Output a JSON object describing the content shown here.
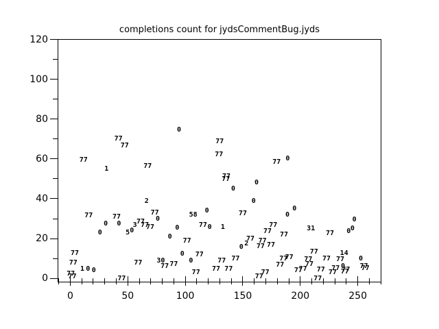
{
  "window": {
    "background": "#ffffff",
    "text_color": "#000000",
    "axis_color": "#000000"
  },
  "chart_data": {
    "type": "scatter",
    "title": "completions count for jydsCommentBug.jyds",
    "xlabel": "",
    "ylabel": "",
    "xlim": [
      -11,
      270.5
    ],
    "ylim": [
      -2,
      120.2
    ],
    "grid": false,
    "legend": "none",
    "point_style": "numeric-text-label",
    "x_major_ticks": [
      0,
      50,
      100,
      150,
      200,
      250
    ],
    "x_minor_tick_start": -10,
    "x_minor_tick_end": 270,
    "x_minor_tick_step": 10,
    "y_major_ticks": [
      0,
      20,
      40,
      60,
      80,
      100,
      120
    ],
    "y_minor_tick_start": 0,
    "y_minor_tick_end": 120,
    "y_minor_tick_step": 10,
    "points": [
      {
        "label": "77",
        "x": 11.5,
        "y": 59.2
      },
      {
        "label": "1",
        "x": 31.5,
        "y": 54.7
      },
      {
        "label": "77",
        "x": 41.9,
        "y": 69.8
      },
      {
        "label": "77",
        "x": 47.3,
        "y": 66.4
      },
      {
        "label": "77",
        "x": 67.3,
        "y": 56.1
      },
      {
        "label": "0",
        "x": 94.6,
        "y": 74.4
      },
      {
        "label": "77",
        "x": 129.9,
        "y": 68.7
      },
      {
        "label": "77",
        "x": 129.3,
        "y": 62.0
      },
      {
        "label": "77",
        "x": 135.7,
        "y": 51.0
      },
      {
        "label": "77",
        "x": 135.3,
        "y": 49.8
      },
      {
        "label": "0",
        "x": 141.7,
        "y": 44.8
      },
      {
        "label": "0",
        "x": 162.0,
        "y": 47.8
      },
      {
        "label": "77",
        "x": 179.4,
        "y": 58.3
      },
      {
        "label": "0",
        "x": 189.0,
        "y": 60.1
      },
      {
        "label": "2",
        "x": 66.4,
        "y": 38.5
      },
      {
        "label": "77",
        "x": 16.0,
        "y": 31.4
      },
      {
        "label": "77",
        "x": 40.3,
        "y": 30.6
      },
      {
        "label": "77",
        "x": 73.5,
        "y": 32.9
      },
      {
        "label": "0",
        "x": 76.1,
        "y": 29.7
      },
      {
        "label": "0",
        "x": 30.8,
        "y": 27.4
      },
      {
        "label": "0",
        "x": 42.3,
        "y": 27.4
      },
      {
        "label": "3",
        "x": 56.2,
        "y": 26.6
      },
      {
        "label": "77",
        "x": 61.2,
        "y": 28.2
      },
      {
        "label": "77",
        "x": 64.8,
        "y": 26.7
      },
      {
        "label": "77",
        "x": 69.5,
        "y": 25.6
      },
      {
        "label": "5",
        "x": 49.9,
        "y": 22.8
      },
      {
        "label": "0",
        "x": 53.6,
        "y": 23.9
      },
      {
        "label": "0",
        "x": 25.8,
        "y": 22.8
      },
      {
        "label": "77",
        "x": 3.9,
        "y": 12.6
      },
      {
        "label": "77",
        "x": 2.6,
        "y": 7.6
      },
      {
        "label": "77",
        "x": 0.4,
        "y": 2.3
      },
      {
        "label": "77",
        "x": 1.8,
        "y": 0.9
      },
      {
        "label": "1",
        "x": 10.5,
        "y": 4.4
      },
      {
        "label": "0",
        "x": 15.4,
        "y": 4.5
      },
      {
        "label": "0",
        "x": 20.5,
        "y": 3.9
      },
      {
        "label": "77",
        "x": 44.7,
        "y": -0.4
      },
      {
        "label": "77",
        "x": 59.0,
        "y": 7.6
      },
      {
        "label": "30",
        "x": 78.7,
        "y": 8.7
      },
      {
        "label": "77",
        "x": 82.1,
        "y": 5.8
      },
      {
        "label": "77",
        "x": 90.0,
        "y": 6.8
      },
      {
        "label": "0",
        "x": 159.4,
        "y": 38.6
      },
      {
        "label": "0",
        "x": 118.8,
        "y": 33.7
      },
      {
        "label": "58",
        "x": 106.9,
        "y": 31.7
      },
      {
        "label": "77",
        "x": 150.0,
        "y": 32.5
      },
      {
        "label": "77",
        "x": 115.4,
        "y": 26.5
      },
      {
        "label": "0",
        "x": 121.2,
        "y": 25.4
      },
      {
        "label": "1",
        "x": 132.7,
        "y": 25.4
      },
      {
        "label": "77",
        "x": 176.4,
        "y": 26.5
      },
      {
        "label": "77",
        "x": 171.5,
        "y": 23.6
      },
      {
        "label": "0",
        "x": 93.0,
        "y": 25.1
      },
      {
        "label": "0",
        "x": 86.6,
        "y": 20.7
      },
      {
        "label": "77",
        "x": 101.5,
        "y": 18.7
      },
      {
        "label": "77",
        "x": 156.6,
        "y": 19.6
      },
      {
        "label": "2",
        "x": 153.2,
        "y": 17.4
      },
      {
        "label": "0",
        "x": 148.7,
        "y": 15.6
      },
      {
        "label": "77",
        "x": 167.1,
        "y": 18.8
      },
      {
        "label": "77",
        "x": 165.5,
        "y": 15.9
      },
      {
        "label": "77",
        "x": 174.5,
        "y": 16.7
      },
      {
        "label": "0",
        "x": 97.4,
        "y": 12.1
      },
      {
        "label": "77",
        "x": 112.3,
        "y": 11.9
      },
      {
        "label": "0",
        "x": 104.9,
        "y": 8.8
      },
      {
        "label": "77",
        "x": 131.7,
        "y": 8.8
      },
      {
        "label": "77",
        "x": 143.7,
        "y": 9.6
      },
      {
        "label": "77",
        "x": 126.8,
        "y": 4.4
      },
      {
        "label": "77",
        "x": 137.7,
        "y": 4.4
      },
      {
        "label": "77",
        "x": 109.3,
        "y": 2.7
      },
      {
        "label": "77",
        "x": 164.2,
        "y": 0.7
      },
      {
        "label": "77",
        "x": 169.5,
        "y": 2.7
      },
      {
        "label": "0",
        "x": 194.9,
        "y": 34.8
      },
      {
        "label": "0",
        "x": 188.8,
        "y": 31.7
      },
      {
        "label": "77",
        "x": 185.8,
        "y": 21.9
      },
      {
        "label": "31",
        "x": 209.2,
        "y": 24.7
      },
      {
        "label": "77",
        "x": 225.8,
        "y": 22.5
      },
      {
        "label": "0",
        "x": 242.0,
        "y": 23.4
      },
      {
        "label": "0",
        "x": 245.4,
        "y": 24.7
      },
      {
        "label": "0",
        "x": 247.0,
        "y": 29.3
      },
      {
        "label": "77",
        "x": 211.9,
        "y": 13.0
      },
      {
        "label": "14",
        "x": 238.1,
        "y": 12.5
      },
      {
        "label": "77",
        "x": 190.4,
        "y": 10.4
      },
      {
        "label": "77",
        "x": 185.4,
        "y": 9.6
      },
      {
        "label": "77",
        "x": 182.4,
        "y": 6.7
      },
      {
        "label": "77",
        "x": 206.9,
        "y": 9.3
      },
      {
        "label": "77",
        "x": 207.9,
        "y": 7.0
      },
      {
        "label": "77",
        "x": 222.8,
        "y": 9.6
      },
      {
        "label": "77",
        "x": 234.7,
        "y": 9.3
      },
      {
        "label": "0",
        "x": 237.1,
        "y": 5.9
      },
      {
        "label": "77",
        "x": 239.7,
        "y": 4.1
      },
      {
        "label": "0",
        "x": 252.6,
        "y": 9.6
      },
      {
        "label": "77",
        "x": 255.3,
        "y": 5.9
      },
      {
        "label": "77",
        "x": 256.6,
        "y": 5.0
      },
      {
        "label": "77",
        "x": 198.3,
        "y": 3.9
      },
      {
        "label": "77",
        "x": 202.3,
        "y": 4.4
      },
      {
        "label": "77",
        "x": 217.9,
        "y": 4.1
      },
      {
        "label": "77",
        "x": 230.7,
        "y": 5.0
      },
      {
        "label": "77",
        "x": 228.1,
        "y": 2.9
      },
      {
        "label": "77",
        "x": 238.7,
        "y": 3.3
      },
      {
        "label": "77",
        "x": 215.2,
        "y": -0.2
      }
    ]
  }
}
